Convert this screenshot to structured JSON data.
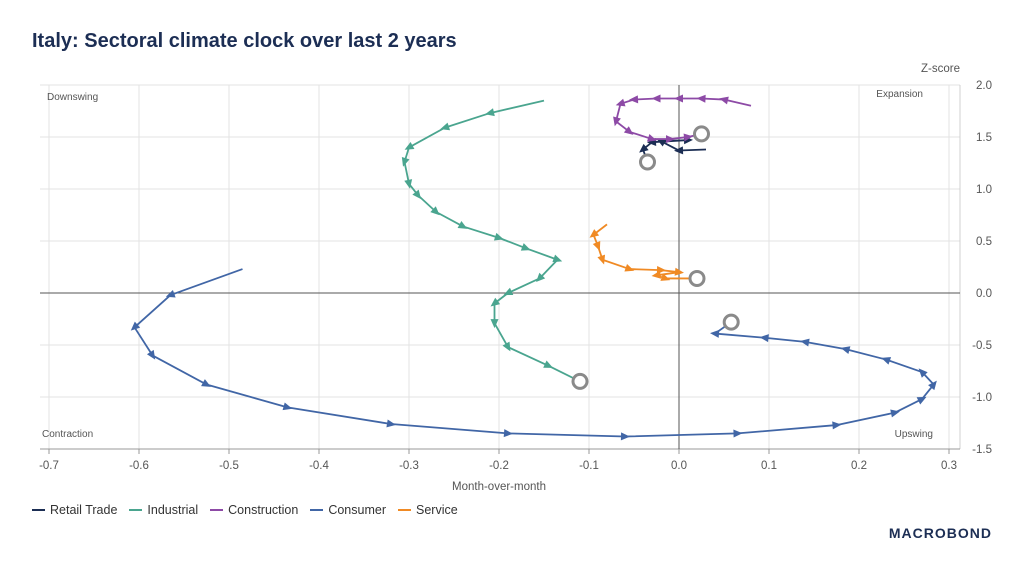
{
  "title": "Italy: Sectoral climate clock over last 2 years",
  "brand": "MACROBOND",
  "chart_data": {
    "type": "line",
    "title": "Italy: Sectoral climate clock over last 2 years",
    "xlabel": "Month-over-month",
    "ylabel": "Z-score",
    "xlim": [
      -0.7,
      0.3
    ],
    "ylim": [
      -1.5,
      2.0
    ],
    "xticks": [
      -0.7,
      -0.6,
      -0.5,
      -0.4,
      -0.3,
      -0.2,
      -0.1,
      0.0,
      0.1,
      0.2,
      0.3
    ],
    "xtick_labels": [
      "-0.7",
      "-0.6",
      "-0.5",
      "-0.4",
      "-0.3",
      "-0.2",
      "-0.1",
      "0.0",
      "0.1",
      "0.2",
      "0.3"
    ],
    "yticks": [
      2.0,
      1.5,
      1.0,
      0.5,
      0.0,
      -0.5,
      -1.0,
      -1.5
    ],
    "ytick_labels": [
      "2.0",
      "1.5",
      "1.0",
      "0.5",
      "0.0",
      "-0.5",
      "-1.0",
      "-1.5"
    ],
    "grid": true,
    "quadrants": {
      "top_left": "Downswing",
      "top_right": "Expansion",
      "bottom_left": "Contraction",
      "bottom_right": "Upswing"
    },
    "series": [
      {
        "name": "Retail Trade",
        "color": "#1c2e54",
        "points": [
          [
            0.03,
            1.38
          ],
          [
            0.0,
            1.37
          ],
          [
            -0.02,
            1.46
          ],
          [
            0.01,
            1.47
          ],
          [
            -0.03,
            1.45
          ],
          [
            -0.04,
            1.38
          ],
          [
            -0.035,
            1.26
          ]
        ]
      },
      {
        "name": "Industrial",
        "color": "#4aa58f",
        "points": [
          [
            -0.15,
            1.85
          ],
          [
            -0.21,
            1.73
          ],
          [
            -0.26,
            1.59
          ],
          [
            -0.3,
            1.4
          ],
          [
            -0.305,
            1.26
          ],
          [
            -0.3,
            1.05
          ],
          [
            -0.29,
            0.94
          ],
          [
            -0.27,
            0.78
          ],
          [
            -0.24,
            0.64
          ],
          [
            -0.2,
            0.53
          ],
          [
            -0.17,
            0.43
          ],
          [
            -0.135,
            0.32
          ],
          [
            -0.155,
            0.14
          ],
          [
            -0.19,
            0.0
          ],
          [
            -0.205,
            -0.1
          ],
          [
            -0.205,
            -0.29
          ],
          [
            -0.19,
            -0.52
          ],
          [
            -0.145,
            -0.7
          ],
          [
            -0.11,
            -0.85
          ]
        ]
      },
      {
        "name": "Construction",
        "color": "#8d4aa6",
        "points": [
          [
            0.08,
            1.8
          ],
          [
            0.05,
            1.86
          ],
          [
            0.025,
            1.87
          ],
          [
            0.0,
            1.87
          ],
          [
            -0.025,
            1.87
          ],
          [
            -0.05,
            1.86
          ],
          [
            -0.065,
            1.82
          ],
          [
            -0.07,
            1.65
          ],
          [
            -0.055,
            1.55
          ],
          [
            -0.03,
            1.48
          ],
          [
            -0.01,
            1.48
          ],
          [
            0.01,
            1.5
          ],
          [
            0.025,
            1.53
          ]
        ]
      },
      {
        "name": "Consumer",
        "color": "#4166a6",
        "points": [
          [
            -0.485,
            0.23
          ],
          [
            -0.565,
            -0.02
          ],
          [
            -0.605,
            -0.33
          ],
          [
            -0.585,
            -0.6
          ],
          [
            -0.525,
            -0.88
          ],
          [
            -0.435,
            -1.1
          ],
          [
            -0.32,
            -1.26
          ],
          [
            -0.19,
            -1.35
          ],
          [
            -0.06,
            -1.38
          ],
          [
            0.065,
            -1.35
          ],
          [
            0.175,
            -1.27
          ],
          [
            0.24,
            -1.15
          ],
          [
            0.27,
            -1.02
          ],
          [
            0.283,
            -0.88
          ],
          [
            0.27,
            -0.76
          ],
          [
            0.23,
            -0.64
          ],
          [
            0.185,
            -0.54
          ],
          [
            0.14,
            -0.47
          ],
          [
            0.095,
            -0.43
          ],
          [
            0.04,
            -0.39
          ],
          [
            0.058,
            -0.28
          ]
        ]
      },
      {
        "name": "Service",
        "color": "#f08a24",
        "points": [
          [
            -0.08,
            0.66
          ],
          [
            -0.095,
            0.56
          ],
          [
            -0.09,
            0.45
          ],
          [
            -0.085,
            0.32
          ],
          [
            -0.055,
            0.23
          ],
          [
            -0.02,
            0.22
          ],
          [
            0.0,
            0.2
          ],
          [
            -0.025,
            0.17
          ],
          [
            -0.015,
            0.14
          ],
          [
            0.02,
            0.14
          ]
        ]
      }
    ],
    "latest_point_marker": "circle",
    "legend_position": "bottom-left"
  }
}
